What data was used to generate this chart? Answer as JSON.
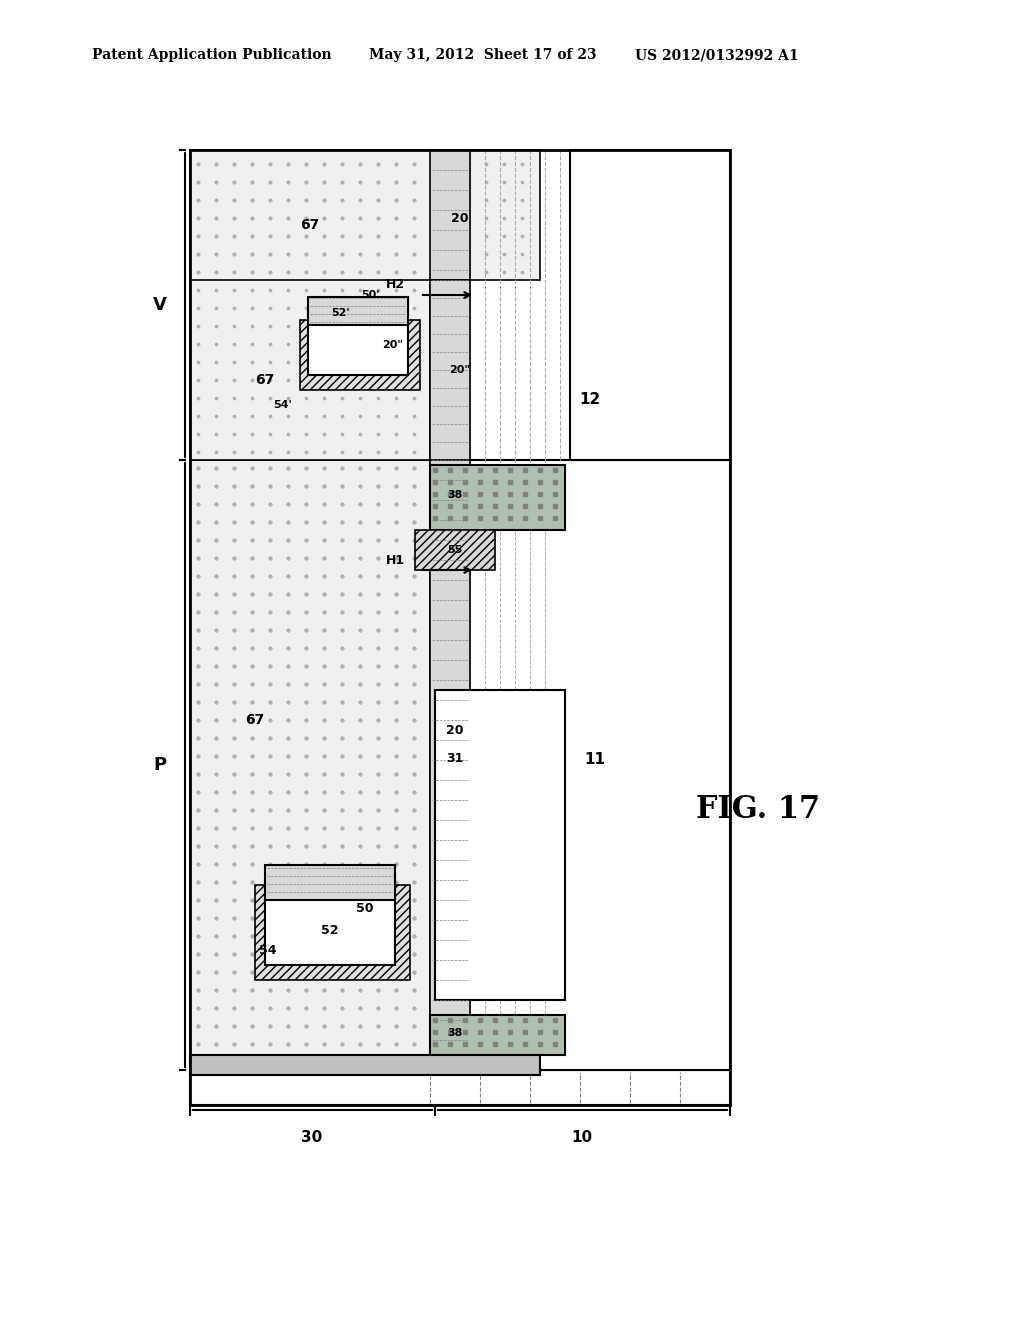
{
  "title_left": "Patent Application Publication",
  "title_mid": "May 31, 2012  Sheet 17 of 23",
  "title_right": "US 2012/0132992 A1",
  "fig_label": "FIG. 17",
  "bg_color": "#ffffff",
  "dot_pattern_color": "#aaaaaa",
  "hatch_color": "#888888",
  "border_color": "#000000",
  "label_color": "#000000"
}
